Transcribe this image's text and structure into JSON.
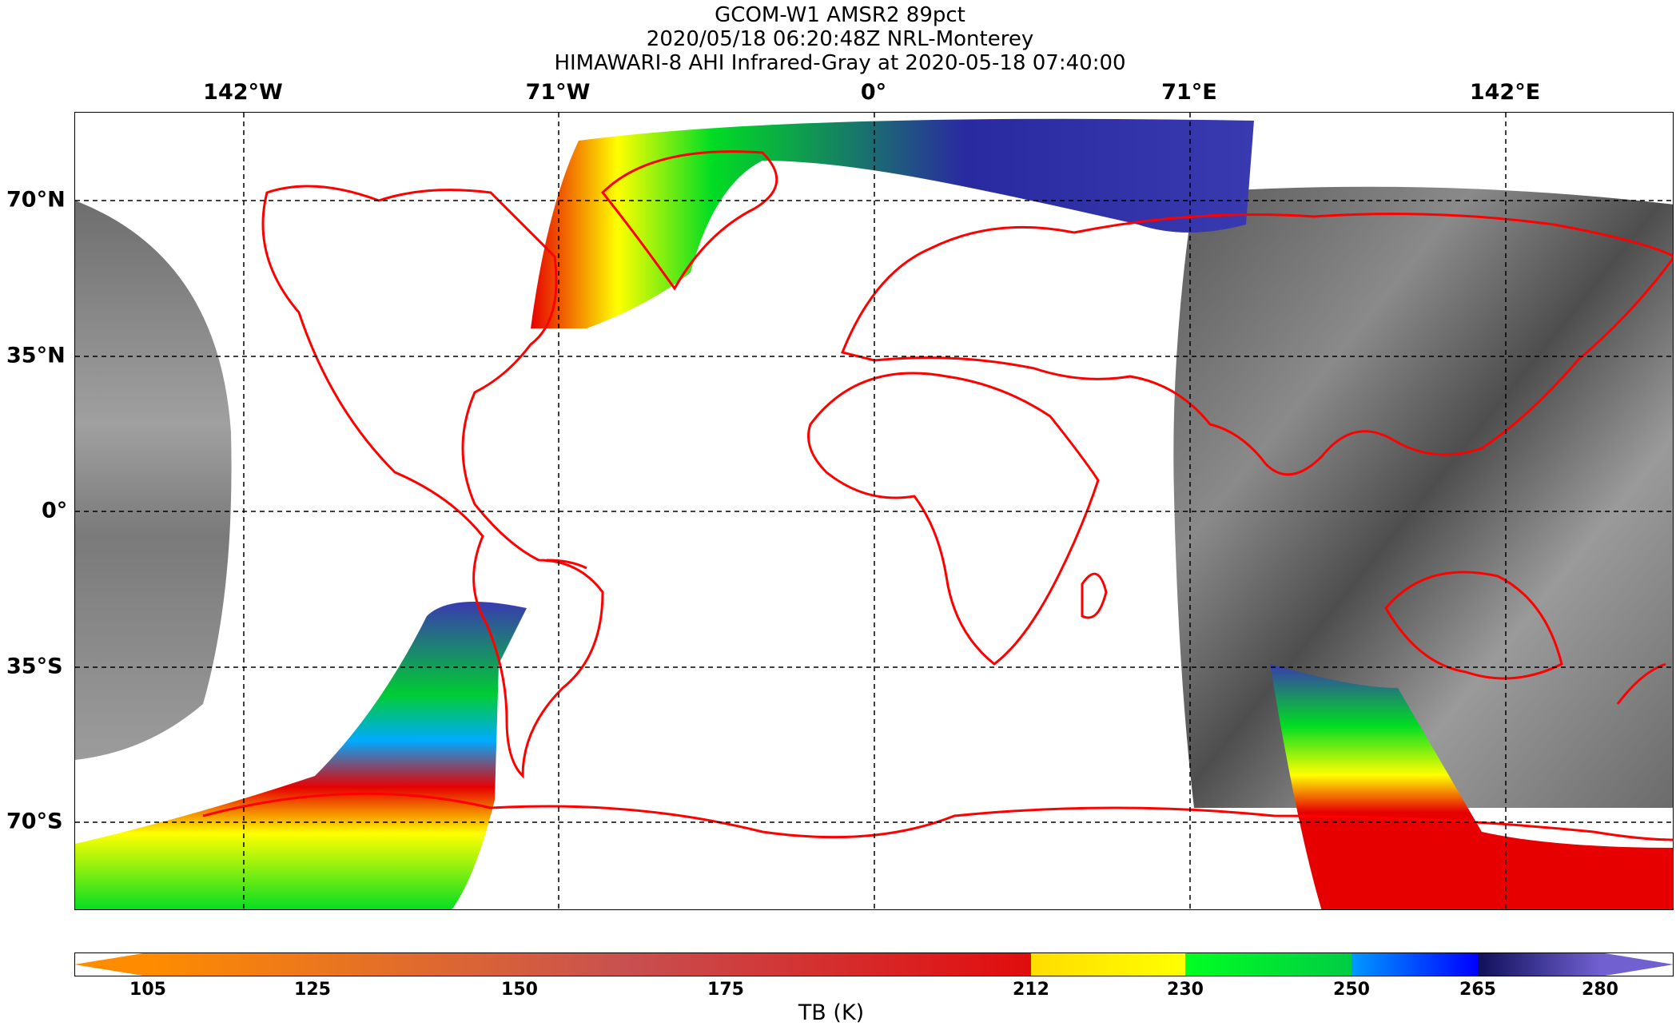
{
  "title": {
    "line1": "GCOM-W1 AMSR2 89pct",
    "line2": "2020/05/18 06:20:48Z NRL-Monterey",
    "line3": "HIMAWARI-8 AHI Infrared-Gray at 2020-05-18 07:40:00"
  },
  "axes": {
    "lon_labels": [
      "142°W",
      "71°W",
      "0°",
      "71°E",
      "142°E"
    ],
    "lat_labels": [
      "70°N",
      "35°N",
      "0°",
      "35°S",
      "70°S"
    ]
  },
  "colorbar": {
    "label": "TB (K)",
    "ticks": [
      "105",
      "125",
      "150",
      "175",
      "212",
      "230",
      "250",
      "265",
      "280"
    ],
    "colors": {
      "orange": "#ff8c00",
      "red": "#e60000",
      "yellow": "#ffff00",
      "green": "#00dd22",
      "blue": "#0033ff",
      "navy": "#1a1a80",
      "purple": "#6a5acd"
    }
  },
  "map": {
    "coastline_color": "#ff0000",
    "background": "#ffffff",
    "gridline_style": "dashed"
  }
}
